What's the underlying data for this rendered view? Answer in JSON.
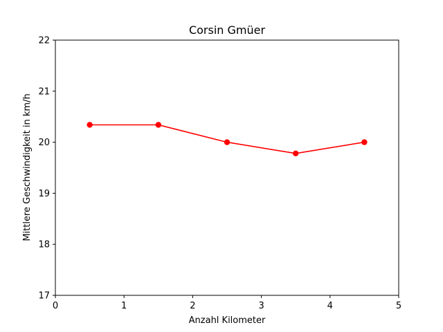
{
  "chart_data": {
    "type": "line",
    "title": "Corsin Gmüer",
    "xlabel": "Anzahl Kilometer",
    "ylabel": "Mittlere Geschwindigkeit in km/h",
    "xlim": [
      0,
      5
    ],
    "ylim": [
      17,
      22
    ],
    "xticks": [
      "0",
      "1",
      "2",
      "3",
      "4",
      "5"
    ],
    "yticks": [
      "17",
      "18",
      "19",
      "20",
      "21",
      "22"
    ],
    "grid": false,
    "series": [
      {
        "color": "#ff0000",
        "marker": "circle",
        "x": [
          0.5,
          1.5,
          2.5,
          3.5,
          4.5
        ],
        "y": [
          20.34,
          20.34,
          20.0,
          19.78,
          20.0
        ]
      }
    ]
  }
}
